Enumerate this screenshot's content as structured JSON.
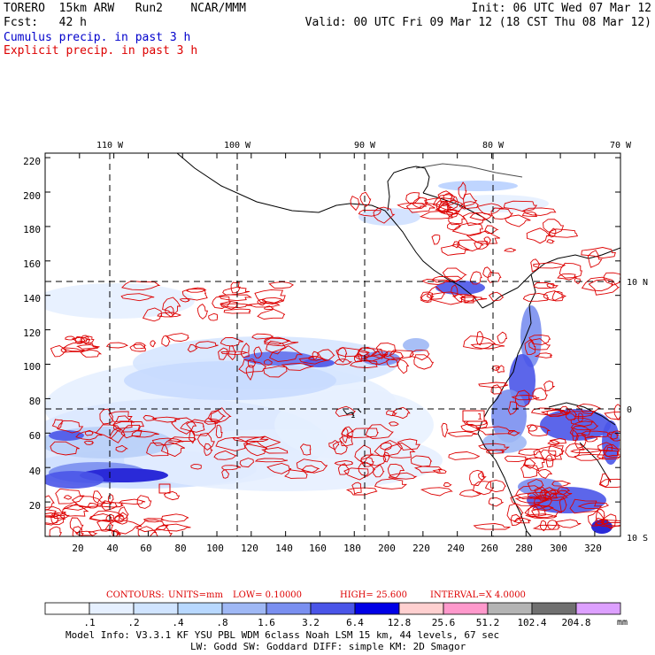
{
  "header": {
    "line1_left": "TORERO  15km ARW   Run2    NCAR/MMM",
    "line1_right": "Init: 06 UTC Wed 07 Mar 12",
    "line2_left": "Fcst:   42 h",
    "line2_right": "Valid: 00 UTC Fri 09 Mar 12 (18 CST Thu 08 Mar 12)",
    "cumulus_label": "Cumulus precip. in past 3 h",
    "explicit_label": "Explicit precip. in past 3 h",
    "cumulus_color": "#0000cc",
    "explicit_color": "#dd0000"
  },
  "map": {
    "top_lon_labels": [
      "110 W",
      "100 W",
      "90 W",
      "80 W",
      "70 W"
    ],
    "right_lat_labels": [
      "10 N",
      "0",
      "10 S"
    ],
    "y_ticks": [
      "220",
      "200",
      "180",
      "160",
      "140",
      "120",
      "100",
      "80",
      "60",
      "40",
      "20"
    ],
    "x_ticks": [
      "20",
      "40",
      "60",
      "80",
      "100",
      "120",
      "140",
      "160",
      "180",
      "200",
      "220",
      "240",
      "260",
      "280",
      "300",
      "320"
    ],
    "station_labels": [
      "1",
      "1"
    ]
  },
  "contours_info": {
    "contours": "CONTOURS:",
    "units": "UNITS=mm",
    "low": "LOW= 0.10000",
    "high": "HIGH=  25.600",
    "interval": "INTERVAL=X  4.0000",
    "color": "#dd0000"
  },
  "colorbar": {
    "labels": [
      ".1",
      ".2",
      ".4",
      ".8",
      "1.6",
      "3.2",
      "6.4",
      "12.8",
      "25.6",
      "51.2",
      "102.4",
      "204.8"
    ],
    "colors": [
      "#ffffff",
      "#e6f0ff",
      "#d0e4ff",
      "#b8d8ff",
      "#9fb8f5",
      "#7a8ff0",
      "#4a55e8",
      "#0000e6",
      "#ffd0d0",
      "#ff99cc",
      "#b4b4b4",
      "#707070",
      "#dda0ff"
    ],
    "units": "mm"
  },
  "footer": {
    "line1": "Model Info: V3.3.1   KF     YSU PBL  WDM 6class  Noah LSM  15 km,   44 levels,   67 sec",
    "line2": "LW: Godd SW: Goddard DIFF: simple KM: 2D Smagor"
  }
}
